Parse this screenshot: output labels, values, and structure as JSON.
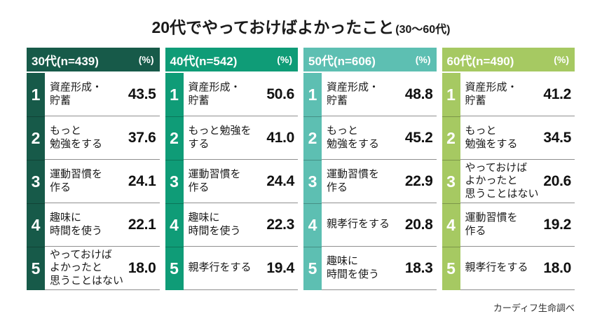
{
  "title": {
    "main": "20代でやっておけばよかったこと",
    "suffix": "(30〜60代)"
  },
  "source": "カーディフ生命調べ",
  "chart_data": {
    "type": "table",
    "title": "20代でやっておけばよかったこと(30〜60代)",
    "unit": "%",
    "legend_position": "none",
    "groups": [
      {
        "label": "30代(n=439)",
        "unit_label": "(%)",
        "color": "#175a49",
        "rows": [
          {
            "rank": "1",
            "item": "資産形成・貯蓄",
            "item_lines": [
              "資産形成・",
              "貯蓄"
            ],
            "value": "43.5"
          },
          {
            "rank": "2",
            "item": "もっと勉強をする",
            "item_lines": [
              "もっと",
              "勉強をする"
            ],
            "value": "37.6"
          },
          {
            "rank": "3",
            "item": "運動習慣を作る",
            "item_lines": [
              "運動習慣を",
              "作る"
            ],
            "value": "24.1"
          },
          {
            "rank": "4",
            "item": "趣味に時間を使う",
            "item_lines": [
              "趣味に",
              "時間を使う"
            ],
            "value": "22.1"
          },
          {
            "rank": "5",
            "item": "やっておけばよかったと思うことはない",
            "item_lines": [
              "やっておけば",
              "よかったと",
              "思うことはない"
            ],
            "value": "18.0"
          }
        ]
      },
      {
        "label": "40代(n=542)",
        "unit_label": "(%)",
        "color": "#0f9c77",
        "rows": [
          {
            "rank": "1",
            "item": "資産形成・貯蓄",
            "item_lines": [
              "資産形成・",
              "貯蓄"
            ],
            "value": "50.6"
          },
          {
            "rank": "2",
            "item": "もっと勉強をする",
            "item_lines": [
              "もっと勉強を",
              "する"
            ],
            "value": "41.0"
          },
          {
            "rank": "3",
            "item": "運動習慣を作る",
            "item_lines": [
              "運動習慣を",
              "作る"
            ],
            "value": "24.4"
          },
          {
            "rank": "4",
            "item": "趣味に時間を使う",
            "item_lines": [
              "趣味に",
              "時間を使う"
            ],
            "value": "22.3"
          },
          {
            "rank": "5",
            "item": "親孝行をする",
            "item_lines": [
              "親孝行をする"
            ],
            "value": "19.4"
          }
        ]
      },
      {
        "label": "50代(n=606)",
        "unit_label": "(%)",
        "color": "#5dbfb2",
        "rows": [
          {
            "rank": "1",
            "item": "資産形成・貯蓄",
            "item_lines": [
              "資産形成・",
              "貯蓄"
            ],
            "value": "48.8"
          },
          {
            "rank": "2",
            "item": "もっと勉強をする",
            "item_lines": [
              "もっと",
              "勉強をする"
            ],
            "value": "45.2"
          },
          {
            "rank": "3",
            "item": "運動習慣を作る",
            "item_lines": [
              "運動習慣を",
              "作る"
            ],
            "value": "22.9"
          },
          {
            "rank": "4",
            "item": "親孝行をする",
            "item_lines": [
              "親孝行をする"
            ],
            "value": "20.8"
          },
          {
            "rank": "5",
            "item": "趣味に時間を使う",
            "item_lines": [
              "趣味に",
              "時間を使う"
            ],
            "value": "18.3"
          }
        ]
      },
      {
        "label": "60代(n=490)",
        "unit_label": "(%)",
        "color": "#a6c962",
        "rows": [
          {
            "rank": "1",
            "item": "資産形成・貯蓄",
            "item_lines": [
              "資産形成・",
              "貯蓄"
            ],
            "value": "41.2"
          },
          {
            "rank": "2",
            "item": "もっと勉強をする",
            "item_lines": [
              "もっと",
              "勉強をする"
            ],
            "value": "34.5"
          },
          {
            "rank": "3",
            "item": "やっておけばよかったと思うことはない",
            "item_lines": [
              "やっておけば",
              "よかったと",
              "思うことはない"
            ],
            "value": "20.6"
          },
          {
            "rank": "4",
            "item": "運動習慣を作る",
            "item_lines": [
              "運動習慣を",
              "作る"
            ],
            "value": "19.2"
          },
          {
            "rank": "5",
            "item": "親孝行をする",
            "item_lines": [
              "親孝行をする"
            ],
            "value": "18.0"
          }
        ]
      }
    ]
  }
}
